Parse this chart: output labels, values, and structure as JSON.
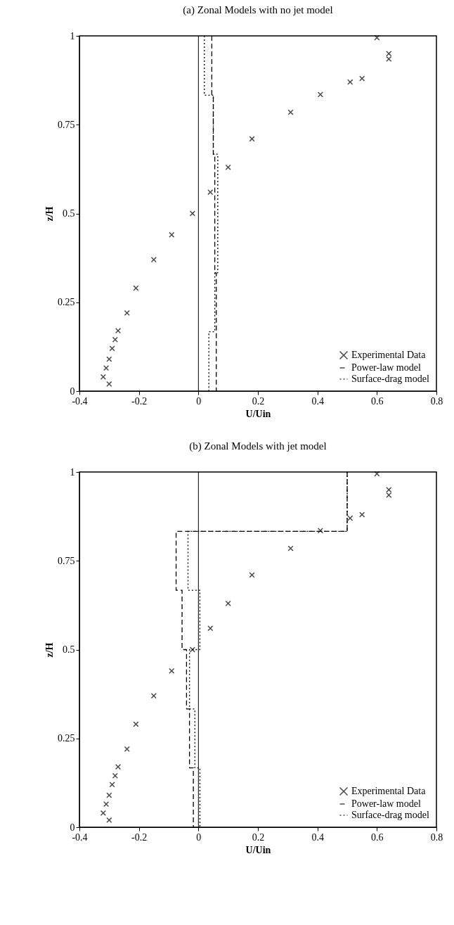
{
  "chart_data": [
    {
      "type": "line",
      "title": "(a) Zonal Models with no jet model",
      "xlabel": "U/Uin",
      "ylabel": "z/H",
      "xlim": [
        -0.4,
        0.8
      ],
      "xticks": [
        -0.4,
        -0.2,
        0,
        0.2,
        0.4,
        0.6,
        0.8
      ],
      "ylim": [
        0,
        1
      ],
      "yticks": [
        0,
        0.25,
        0.5,
        0.75,
        1
      ],
      "grid": false,
      "legend": "bottom right",
      "ref_lines": [
        {
          "axis": "x",
          "value": 0
        }
      ],
      "series": [
        {
          "name": "Experimental Data",
          "type": "scatter",
          "marker": "cross",
          "color": "#000000",
          "x": [
            0.6,
            0.64,
            0.64,
            0.55,
            0.51,
            0.41,
            0.31,
            0.18,
            0.1,
            0.04,
            -0.02,
            -0.09,
            -0.15,
            -0.21,
            -0.24,
            -0.27,
            -0.28,
            -0.29,
            -0.3,
            -0.31,
            -0.32,
            -0.3
          ],
          "values": [
            0.995,
            0.95,
            0.935,
            0.88,
            0.87,
            0.835,
            0.785,
            0.71,
            0.63,
            0.56,
            0.5,
            0.44,
            0.37,
            0.29,
            0.22,
            0.17,
            0.145,
            0.12,
            0.09,
            0.065,
            0.04,
            0.02
          ]
        },
        {
          "name": "Power-law model",
          "type": "line",
          "line_style": "dashed",
          "color": "#000000",
          "x": [
            0.045,
            0.045,
            0.05,
            0.05,
            0.055,
            0.055,
            0.06,
            0.06
          ],
          "values": [
            1,
            0.833,
            0.833,
            0.667,
            0.667,
            0.333,
            0.333,
            0
          ]
        },
        {
          "name": "Surface-drag model",
          "type": "line",
          "line_style": "dotted",
          "color": "#000000",
          "x": [
            0.02,
            0.02,
            0.05,
            0.05,
            0.065,
            0.065,
            0.055,
            0.055,
            0.035,
            0.035
          ],
          "values": [
            1,
            0.833,
            0.833,
            0.667,
            0.667,
            0.333,
            0.333,
            0.167,
            0.167,
            0
          ]
        }
      ]
    },
    {
      "type": "line",
      "title": "(b) Zonal Models with jet model",
      "xlabel": "U/Uin",
      "ylabel": "z/H",
      "xlim": [
        -0.4,
        0.8
      ],
      "xticks": [
        -0.4,
        -0.2,
        0,
        0.2,
        0.4,
        0.6,
        0.8
      ],
      "ylim": [
        0,
        1
      ],
      "yticks": [
        0,
        0.25,
        0.5,
        0.75,
        1
      ],
      "grid": false,
      "legend": "bottom right",
      "ref_lines": [
        {
          "axis": "x",
          "value": 0
        }
      ],
      "series": [
        {
          "name": "Experimental Data",
          "type": "scatter",
          "marker": "cross",
          "color": "#000000",
          "x": [
            0.6,
            0.64,
            0.64,
            0.55,
            0.51,
            0.41,
            0.31,
            0.18,
            0.1,
            0.04,
            -0.02,
            -0.09,
            -0.15,
            -0.21,
            -0.24,
            -0.27,
            -0.28,
            -0.29,
            -0.3,
            -0.31,
            -0.32,
            -0.3
          ],
          "values": [
            0.995,
            0.95,
            0.935,
            0.88,
            0.87,
            0.835,
            0.785,
            0.71,
            0.63,
            0.56,
            0.5,
            0.44,
            0.37,
            0.29,
            0.22,
            0.17,
            0.145,
            0.12,
            0.09,
            0.065,
            0.04,
            0.02
          ]
        },
        {
          "name": "Power-law model",
          "type": "line",
          "line_style": "dashed",
          "color": "#000000",
          "x": [
            0.5,
            0.5,
            -0.075,
            -0.075,
            -0.055,
            -0.055,
            -0.04,
            -0.04,
            -0.03,
            -0.03,
            -0.017,
            -0.017
          ],
          "values": [
            1,
            0.833,
            0.833,
            0.667,
            0.667,
            0.5,
            0.5,
            0.333,
            0.333,
            0.167,
            0.167,
            0
          ]
        },
        {
          "name": "Surface-drag model",
          "type": "line",
          "line_style": "dotted",
          "color": "#000000",
          "x": [
            0.5,
            0.5,
            -0.035,
            -0.035,
            0.005,
            0.005,
            -0.03,
            -0.03,
            -0.012,
            -0.012,
            0.005,
            0.005
          ],
          "values": [
            1,
            0.833,
            0.833,
            0.667,
            0.667,
            0.5,
            0.5,
            0.333,
            0.333,
            0.167,
            0.167,
            0
          ]
        }
      ]
    }
  ]
}
